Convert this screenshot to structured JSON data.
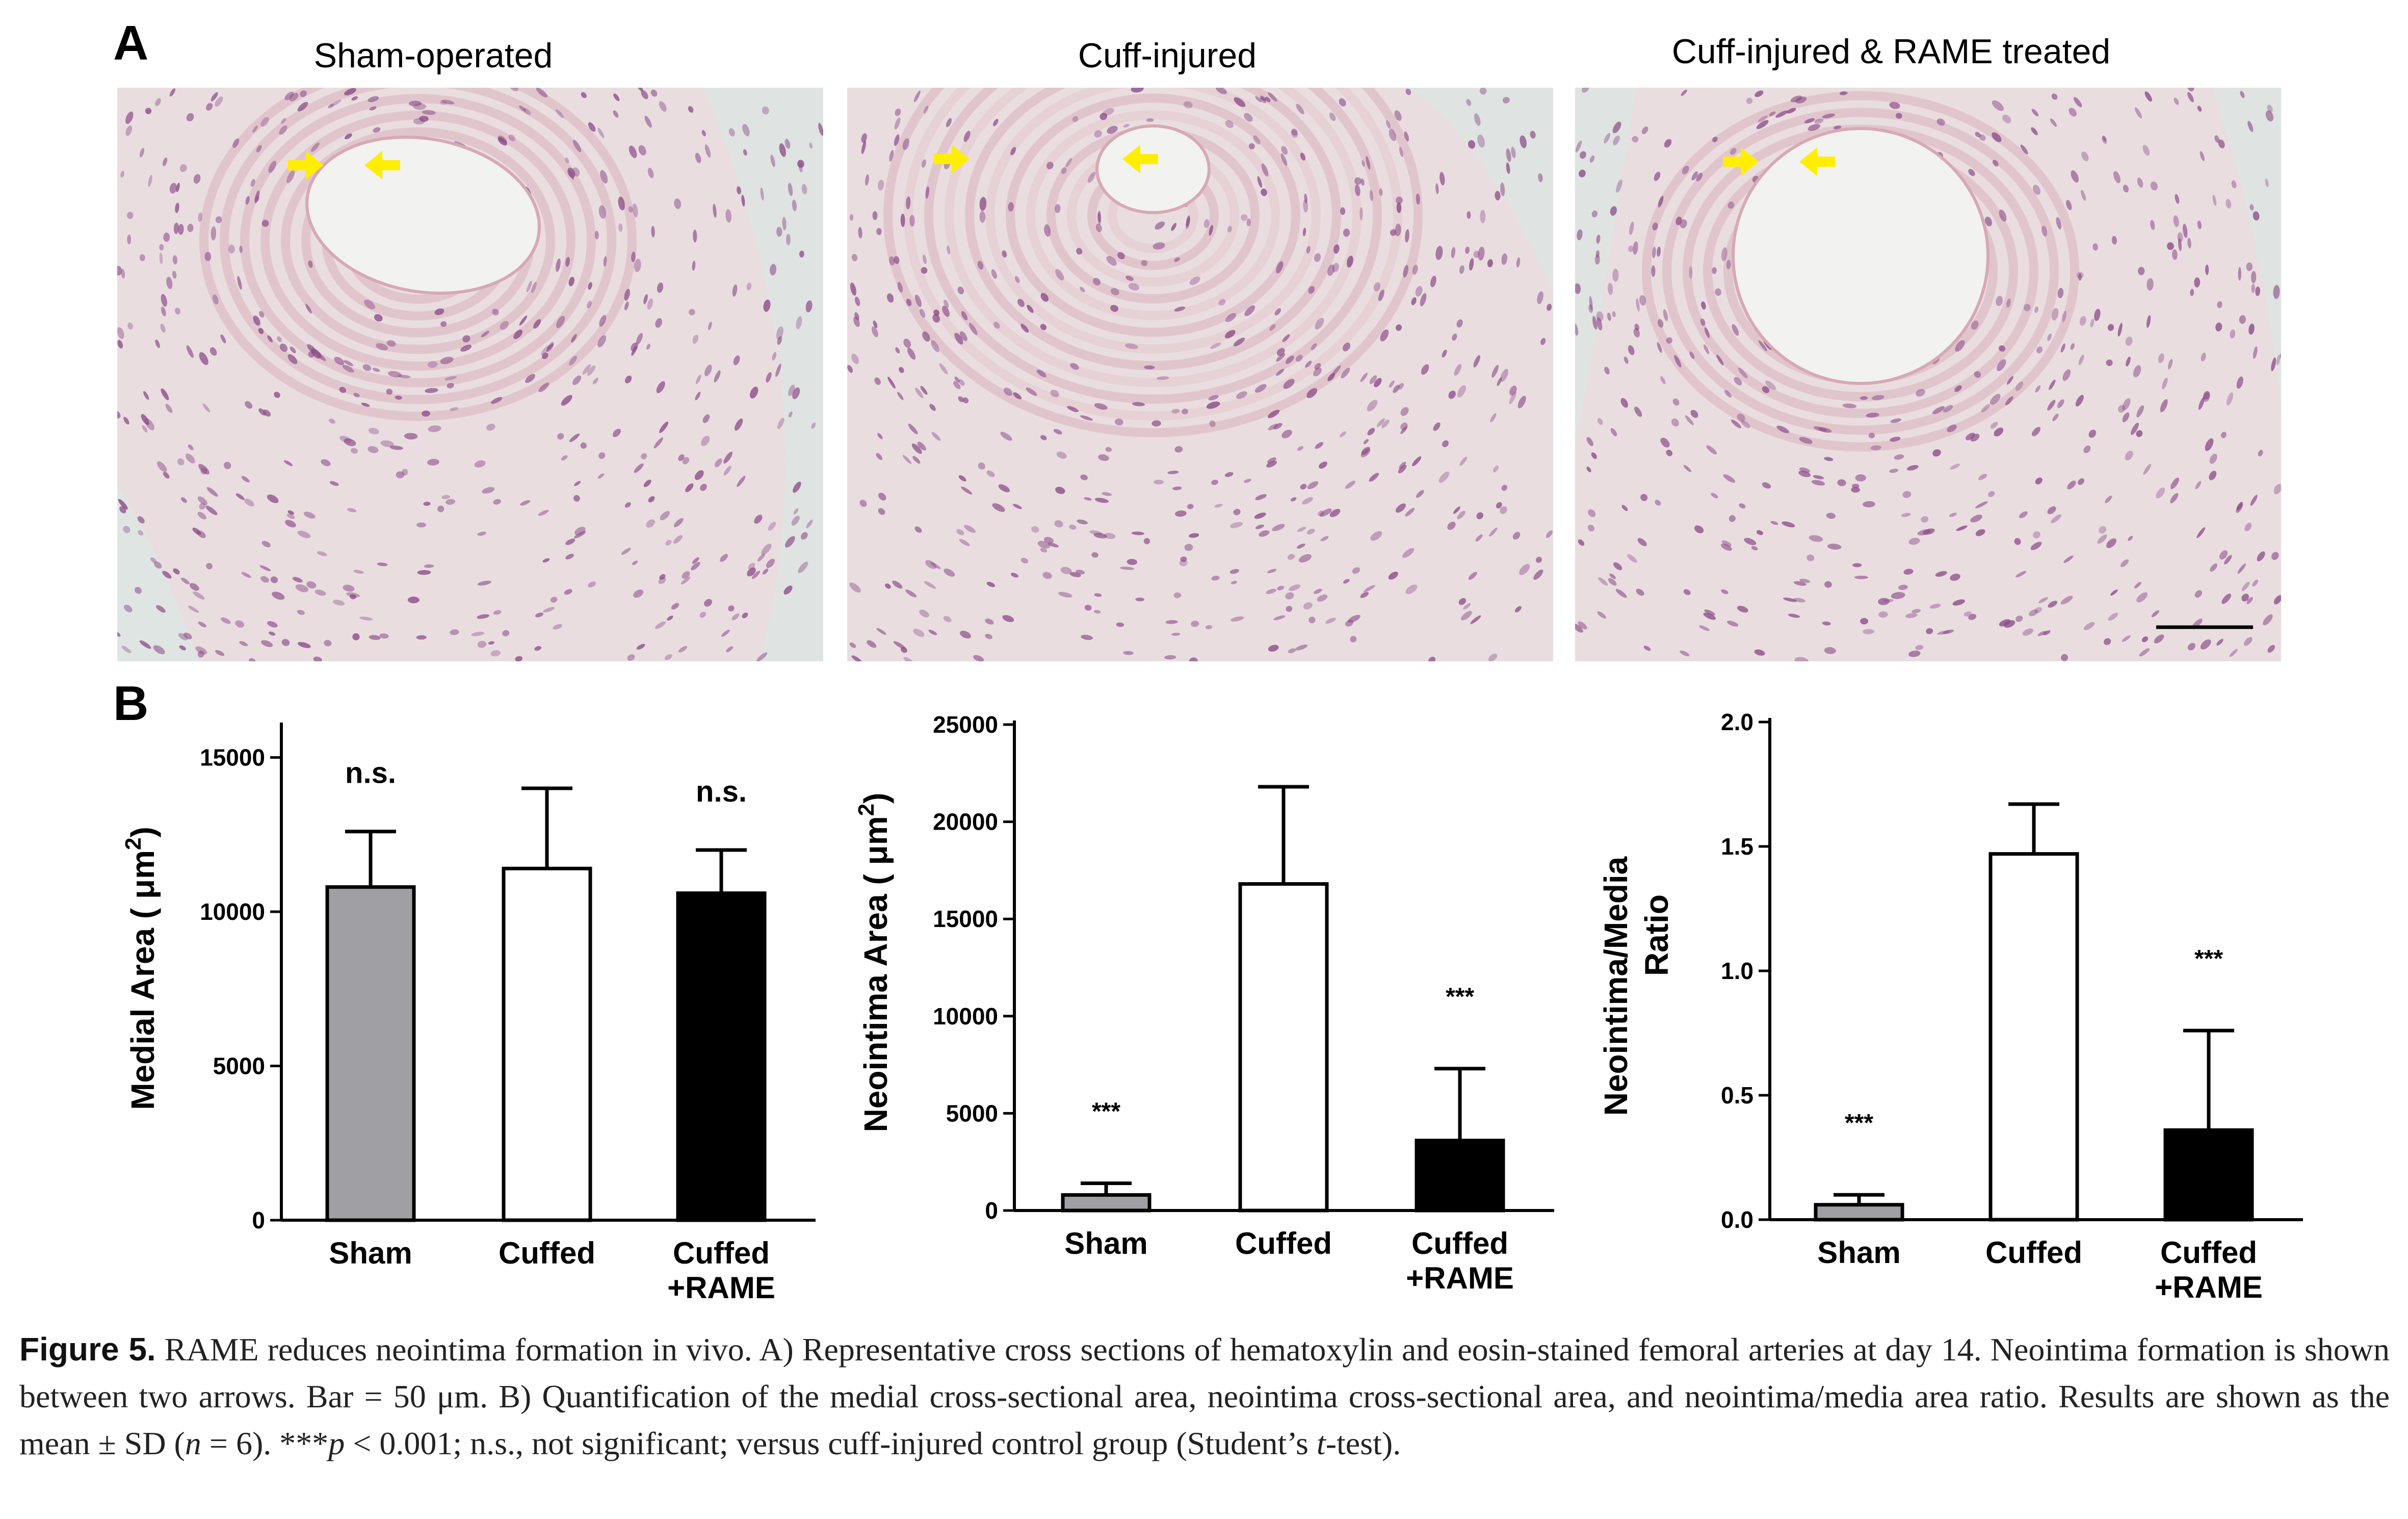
{
  "panel_a": {
    "letter": "A",
    "images": [
      {
        "title": "Sham-operated",
        "lumen": "oval"
      },
      {
        "title": "Cuff-injured",
        "lumen": "small"
      },
      {
        "title": "Cuff-injured & RAME treated",
        "lumen": "large"
      }
    ],
    "arrow_color": "#ffee00",
    "tissue_bg": "#e9dde0",
    "nucleus_color": "#8a4a86"
  },
  "panel_b": {
    "letter": "B"
  },
  "chart_data": [
    {
      "type": "bar",
      "categories": [
        "Sham",
        "Cuffed",
        "Cuffed\n+RAME"
      ],
      "values": [
        10800,
        11400,
        10600
      ],
      "errors": [
        1800,
        2600,
        1400
      ],
      "colors": [
        "#a0a0a4",
        "#ffffff",
        "#000000"
      ],
      "significance": [
        "n.s.",
        "",
        "n.s."
      ],
      "ylabel": "Medial Area ( μm2)",
      "ylabel_main": "Medial Area ( μm",
      "ylabel_sup": "2",
      "ylabel_end": ")",
      "ylim": [
        0,
        16000
      ],
      "yticks": [
        0,
        5000,
        10000,
        15000
      ],
      "ytick_labels": [
        "0",
        "5000",
        "10000",
        "15000"
      ]
    },
    {
      "type": "bar",
      "categories": [
        "Sham",
        "Cuffed",
        "Cuffed\n+RAME"
      ],
      "values": [
        800,
        16800,
        3600
      ],
      "errors": [
        600,
        5000,
        3700
      ],
      "colors": [
        "#a0a0a4",
        "#ffffff",
        "#000000"
      ],
      "significance": [
        "***",
        "",
        "***"
      ],
      "ylabel": "Neointima Area ( μm2)",
      "ylabel_main": "Neointima Area ( μm",
      "ylabel_sup": "2",
      "ylabel_end": ")",
      "ylim": [
        0,
        25000
      ],
      "yticks": [
        0,
        5000,
        10000,
        15000,
        20000,
        25000
      ],
      "ytick_labels": [
        "0",
        "5000",
        "10000",
        "15000",
        "20000",
        "25000"
      ]
    },
    {
      "type": "bar",
      "categories": [
        "Sham",
        "Cuffed",
        "Cuffed\n+RAME"
      ],
      "values": [
        0.06,
        1.47,
        0.36
      ],
      "errors": [
        0.04,
        0.2,
        0.4
      ],
      "colors": [
        "#a0a0a4",
        "#ffffff",
        "#000000"
      ],
      "significance": [
        "***",
        "",
        "***"
      ],
      "ylabel": "Neointima/Media Ratio",
      "ylabel_line1": "Neointima/Media",
      "ylabel_line2": "Ratio",
      "ylim": [
        0,
        2.0
      ],
      "yticks": [
        0,
        0.5,
        1.0,
        1.5,
        2.0
      ],
      "ytick_labels": [
        "0.0",
        "0.5",
        "1.0",
        "1.5",
        "2.0"
      ]
    }
  ],
  "caption": {
    "label": "Figure 5.",
    "text1": "RAME reduces neointima formation in vivo. A) Representative cross sections of hematoxylin and eosin-stained femoral arteries at day 14. Neointima formation is shown between two arrows. Bar = 50 μm. B) Quantification of the medial cross-sectional area, neointima cross-sectional area, and neointima/media area ratio. Results are shown as the mean ± SD (",
    "n_italic": "n",
    "text2": " = 6). ***",
    "p_italic": "p",
    "text3": " < 0.001; n.s., not significant; versus cuff-injured control group (Student’s ",
    "t_italic": "t",
    "text4": "-test)."
  }
}
